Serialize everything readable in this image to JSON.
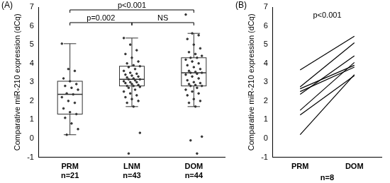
{
  "chart_data": [
    {
      "type": "box",
      "panel": "(A)",
      "ylabel": "Comparative miR-210 expression (dCq)",
      "categories": [
        [
          "PRM",
          "n=21"
        ],
        [
          "LNM",
          "n=43"
        ],
        [
          "DOM",
          "n=44"
        ]
      ],
      "boxes": [
        {
          "min": 0.2,
          "q1": 1.3,
          "median": 2.35,
          "q3": 3.05,
          "max": 5.05
        },
        {
          "min": 1.7,
          "q1": 2.8,
          "median": 3.15,
          "q3": 3.85,
          "max": 5.35
        },
        {
          "min": 1.7,
          "q1": 2.8,
          "median": 3.5,
          "q3": 4.3,
          "max": 5.6
        }
      ],
      "points": [
        [
          5.05,
          3.7,
          3.6,
          3.2,
          3.05,
          2.9,
          2.8,
          2.7,
          2.6,
          2.4,
          2.35,
          2.2,
          2.0,
          1.9,
          1.6,
          1.4,
          1.3,
          1.1,
          0.8,
          0.5,
          0.2
        ],
        [
          5.35,
          5.0,
          4.7,
          4.5,
          4.3,
          4.1,
          4.0,
          3.9,
          3.85,
          3.8,
          3.7,
          3.6,
          3.5,
          3.45,
          3.4,
          3.35,
          3.3,
          3.25,
          3.2,
          3.15,
          3.15,
          3.1,
          3.05,
          3.0,
          3.0,
          2.95,
          2.9,
          2.85,
          2.8,
          2.8,
          2.75,
          2.7,
          2.6,
          2.5,
          2.4,
          2.3,
          2.2,
          2.1,
          2.0,
          1.9,
          1.7,
          0.3,
          -0.8
        ],
        [
          6.6,
          5.6,
          5.5,
          5.3,
          5.0,
          4.8,
          4.6,
          4.5,
          4.4,
          4.3,
          4.3,
          4.2,
          4.1,
          4.0,
          3.9,
          3.8,
          3.7,
          3.6,
          3.55,
          3.5,
          3.5,
          3.45,
          3.4,
          3.3,
          3.2,
          3.1,
          3.0,
          2.95,
          2.9,
          2.85,
          2.8,
          2.8,
          2.7,
          2.6,
          2.5,
          2.4,
          2.3,
          2.1,
          2.0,
          1.9,
          1.7,
          0.1,
          -0.1,
          -0.8
        ]
      ],
      "annotations": [
        {
          "text": "p=0.002",
          "from": "PRM",
          "to": "LNM"
        },
        {
          "text": "NS",
          "from": "LNM",
          "to": "DOM"
        },
        {
          "text": "p<0.001",
          "from": "PRM",
          "to": "DOM"
        }
      ],
      "color": "#333333",
      "ylim": [
        -1,
        7
      ],
      "yticks": [
        -1,
        0,
        1,
        2,
        3,
        4,
        5,
        6,
        7
      ],
      "grid": false
    },
    {
      "type": "line",
      "panel": "(B)",
      "ylabel": "Comparative miR-210 expression (dCq)",
      "xlabel": "n=8",
      "categories": [
        "PRM",
        "DOM"
      ],
      "series": [
        {
          "color": "#000000",
          "values": [
            3.65,
            5.45
          ]
        },
        {
          "color": "#000000",
          "values": [
            2.75,
            5.1
          ]
        },
        {
          "color": "#000000",
          "values": [
            2.65,
            3.9
          ]
        },
        {
          "color": "#000000",
          "values": [
            2.5,
            3.8
          ]
        },
        {
          "color": "#000000",
          "values": [
            2.35,
            4.4
          ]
        },
        {
          "color": "#000000",
          "values": [
            1.5,
            4.05
          ]
        },
        {
          "color": "#000000",
          "values": [
            1.25,
            3.35
          ]
        },
        {
          "color": "#000000",
          "values": [
            0.2,
            3.4
          ]
        }
      ],
      "annotations": [
        {
          "text": "p<0.001"
        }
      ],
      "ylim": [
        -1,
        7
      ],
      "yticks": [
        -1,
        0,
        1,
        2,
        3,
        4,
        5,
        6,
        7
      ],
      "grid": false
    }
  ]
}
